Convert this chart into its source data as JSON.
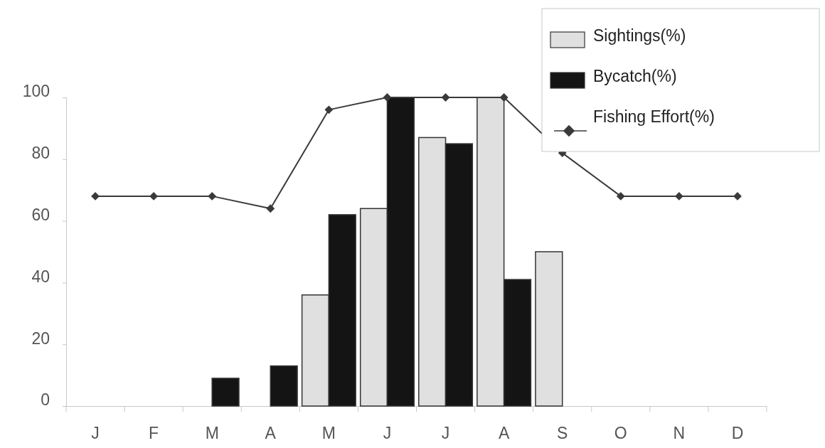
{
  "chart_data": {
    "type": "bar",
    "categories": [
      "J",
      "F",
      "M",
      "A",
      "M",
      "J",
      "J",
      "A",
      "S",
      "O",
      "N",
      "D"
    ],
    "series": [
      {
        "name": "Sightings(%)",
        "color": "#e0e0e0",
        "values": [
          0,
          0,
          0,
          0,
          36,
          64,
          87,
          100,
          50,
          0,
          0,
          0
        ]
      },
      {
        "name": "Bycatch(%)",
        "color": "#141414",
        "values": [
          0,
          0,
          9,
          13,
          62,
          100,
          85,
          41,
          0,
          0,
          0,
          0
        ]
      },
      {
        "name": "Fishing Effort(%)",
        "type": "line",
        "color": "#3a3a3a",
        "values": [
          68,
          68,
          68,
          64,
          96,
          100,
          100,
          100,
          82,
          68,
          68,
          68
        ]
      }
    ],
    "ylim": [
      0,
      100
    ],
    "yticks": [
      0,
      20,
      40,
      60,
      80,
      100
    ],
    "grid": false,
    "legend": "top right",
    "marker": "diamond",
    "line_style": "solid"
  }
}
